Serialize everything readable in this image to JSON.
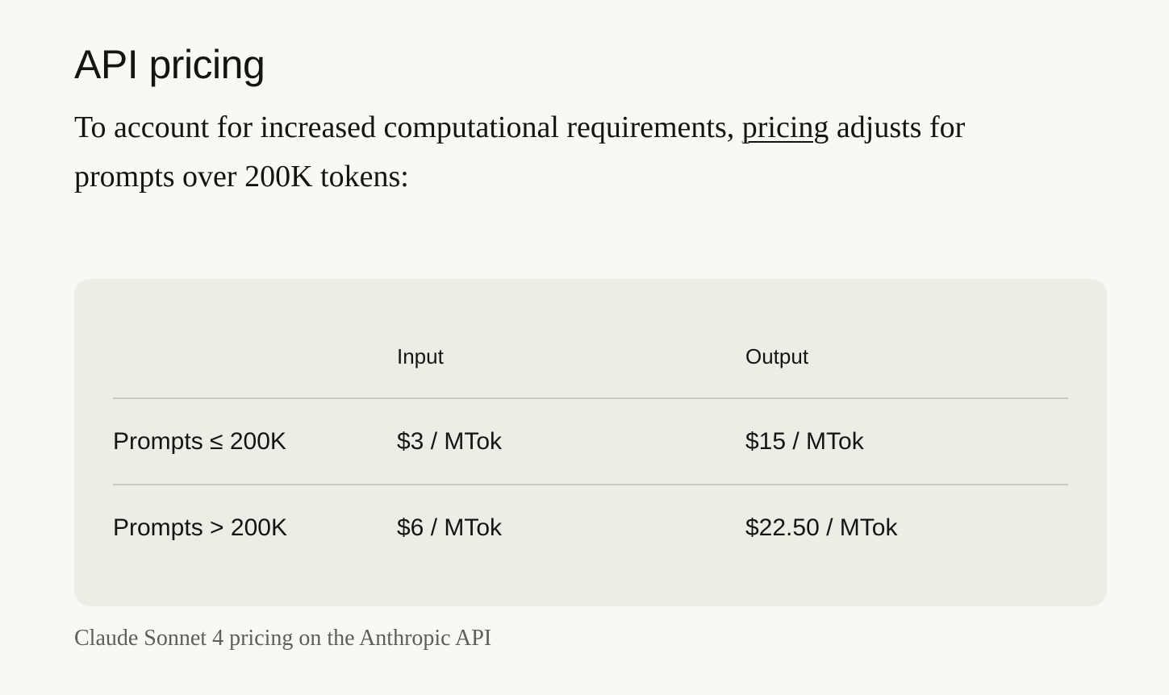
{
  "heading": "API pricing",
  "intro": {
    "before_link": "To account for increased computational requirements, ",
    "link_text": "pricing",
    "after_link": " adjusts for prompts over 200K tokens:"
  },
  "table": {
    "columns": [
      "",
      "Input",
      "Output"
    ],
    "rows": [
      {
        "label": "Prompts ≤ 200K",
        "input": "$3 / MTok",
        "output": "$15 / MTok"
      },
      {
        "label": "Prompts > 200K",
        "input": "$6 / MTok",
        "output": "$22.50 / MTok"
      }
    ]
  },
  "caption": "Claude Sonnet 4 pricing on the Anthropic API",
  "colors": {
    "page_background": "#f9f8f5",
    "card_background": "#edece5",
    "text": "#141413",
    "caption_text": "#5e5d59",
    "divider": "#c9c8c1"
  }
}
